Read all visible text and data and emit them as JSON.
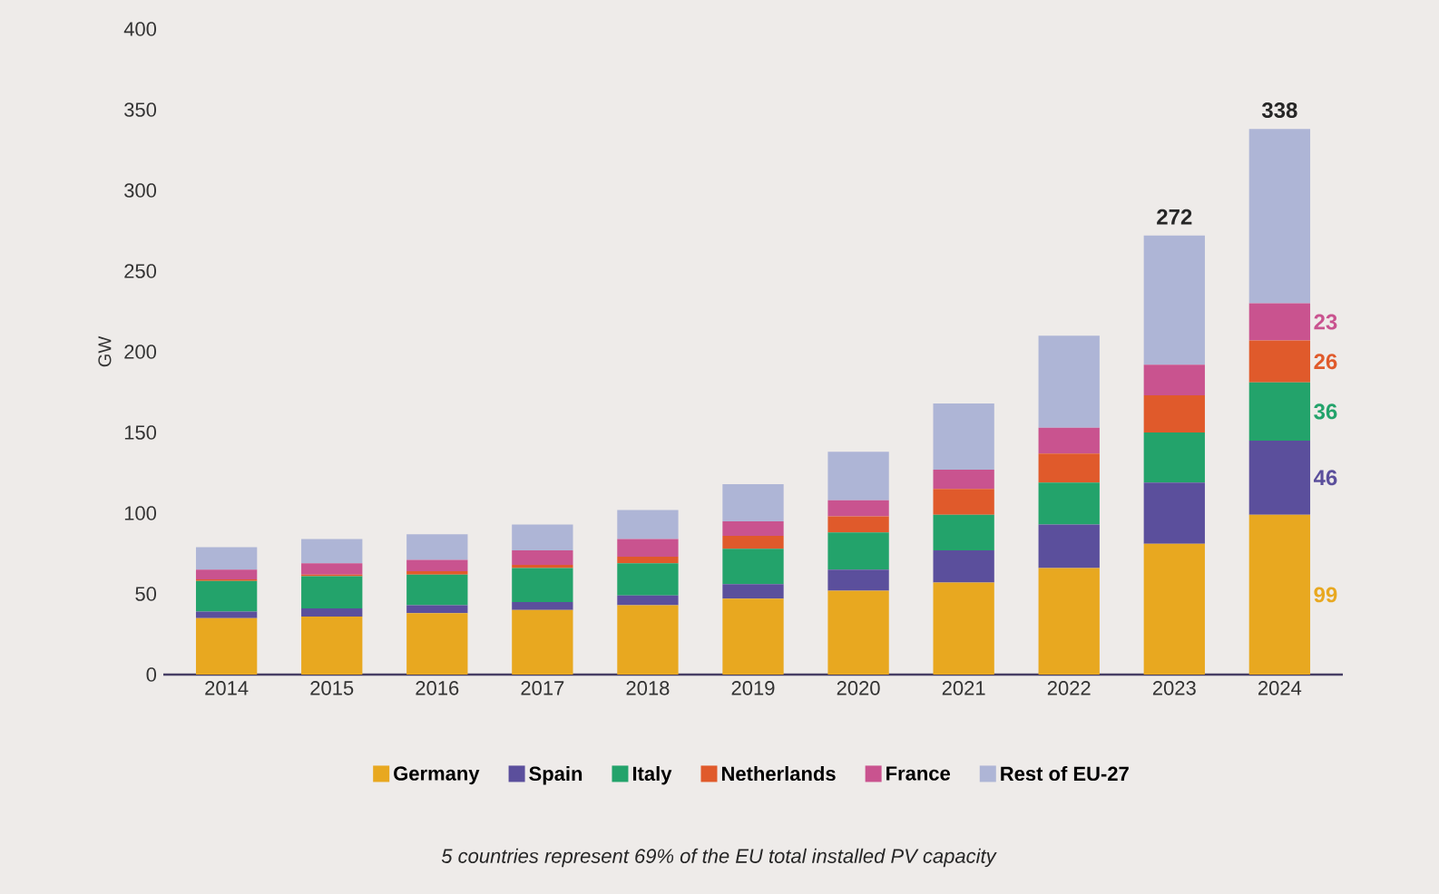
{
  "chart_data": {
    "type": "bar",
    "stacked": true,
    "ylabel": "GW",
    "categories": [
      "2014",
      "2015",
      "2016",
      "2017",
      "2018",
      "2019",
      "2020",
      "2021",
      "2022",
      "2023",
      "2024"
    ],
    "series": [
      {
        "name": "Germany",
        "color": "#e8a820",
        "values": [
          35,
          36,
          38,
          40,
          43,
          47,
          52,
          57,
          66,
          81,
          99
        ],
        "value_labels": [
          null,
          null,
          null,
          null,
          null,
          null,
          null,
          null,
          null,
          null,
          "99"
        ]
      },
      {
        "name": "Spain",
        "color": "#5b4f9c",
        "values": [
          4,
          5,
          5,
          5,
          6,
          9,
          13,
          20,
          27,
          38,
          46
        ],
        "value_labels": [
          null,
          null,
          null,
          null,
          null,
          null,
          null,
          null,
          null,
          null,
          "46"
        ]
      },
      {
        "name": "Italy",
        "color": "#23a36b",
        "values": [
          19,
          20,
          19,
          21,
          20,
          22,
          23,
          22,
          26,
          31,
          36
        ],
        "value_labels": [
          null,
          null,
          null,
          null,
          null,
          null,
          null,
          null,
          null,
          null,
          "36"
        ]
      },
      {
        "name": "Netherlands",
        "color": "#e05a2b",
        "values": [
          1,
          1,
          2,
          2,
          4,
          8,
          10,
          16,
          18,
          23,
          26
        ],
        "value_labels": [
          null,
          null,
          null,
          null,
          null,
          null,
          null,
          null,
          null,
          null,
          "26"
        ]
      },
      {
        "name": "France",
        "color": "#c9538f",
        "values": [
          6,
          7,
          7,
          9,
          11,
          9,
          10,
          12,
          16,
          19,
          23
        ],
        "value_labels": [
          null,
          null,
          null,
          null,
          null,
          null,
          null,
          null,
          null,
          null,
          "23"
        ]
      },
      {
        "name": "Rest of EU-27",
        "color": "#aeb5d6",
        "values": [
          14,
          15,
          16,
          16,
          18,
          23,
          30,
          41,
          57,
          80,
          108
        ]
      }
    ],
    "totals": [
      null,
      null,
      null,
      null,
      null,
      null,
      null,
      null,
      null,
      "272",
      "338"
    ],
    "ylim": [
      0,
      400
    ],
    "yticks": [
      0,
      50,
      100,
      150,
      200,
      250,
      300,
      350,
      400
    ],
    "grid": false,
    "legend": "bottom",
    "annotations": [
      "5 countries represent 69% of the EU total installed PV capacity"
    ]
  }
}
